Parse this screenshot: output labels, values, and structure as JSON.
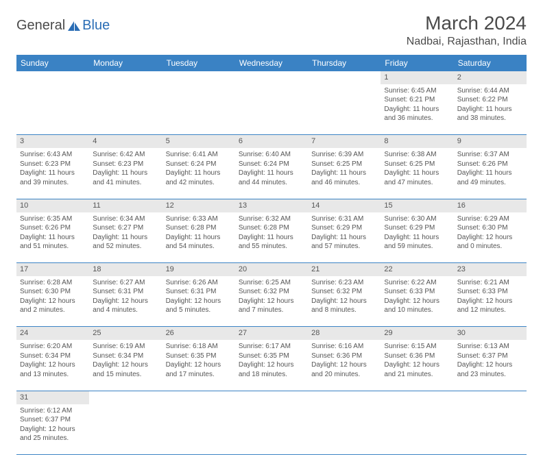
{
  "logo": {
    "part1": "General",
    "part2": "Blue"
  },
  "title": "March 2024",
  "location": "Nadbai, Rajasthan, India",
  "weekdays": [
    "Sunday",
    "Monday",
    "Tuesday",
    "Wednesday",
    "Thursday",
    "Friday",
    "Saturday"
  ],
  "colors": {
    "header_bg": "#3a82c4",
    "header_text": "#ffffff",
    "daynum_bg": "#e8e8e8",
    "border": "#3a82c4",
    "logo_blue": "#2a6db5"
  },
  "weeks": [
    [
      null,
      null,
      null,
      null,
      null,
      {
        "n": "1",
        "sr": "6:45 AM",
        "ss": "6:21 PM",
        "dl": "11 hours and 36 minutes."
      },
      {
        "n": "2",
        "sr": "6:44 AM",
        "ss": "6:22 PM",
        "dl": "11 hours and 38 minutes."
      }
    ],
    [
      {
        "n": "3",
        "sr": "6:43 AM",
        "ss": "6:23 PM",
        "dl": "11 hours and 39 minutes."
      },
      {
        "n": "4",
        "sr": "6:42 AM",
        "ss": "6:23 PM",
        "dl": "11 hours and 41 minutes."
      },
      {
        "n": "5",
        "sr": "6:41 AM",
        "ss": "6:24 PM",
        "dl": "11 hours and 42 minutes."
      },
      {
        "n": "6",
        "sr": "6:40 AM",
        "ss": "6:24 PM",
        "dl": "11 hours and 44 minutes."
      },
      {
        "n": "7",
        "sr": "6:39 AM",
        "ss": "6:25 PM",
        "dl": "11 hours and 46 minutes."
      },
      {
        "n": "8",
        "sr": "6:38 AM",
        "ss": "6:25 PM",
        "dl": "11 hours and 47 minutes."
      },
      {
        "n": "9",
        "sr": "6:37 AM",
        "ss": "6:26 PM",
        "dl": "11 hours and 49 minutes."
      }
    ],
    [
      {
        "n": "10",
        "sr": "6:35 AM",
        "ss": "6:26 PM",
        "dl": "11 hours and 51 minutes."
      },
      {
        "n": "11",
        "sr": "6:34 AM",
        "ss": "6:27 PM",
        "dl": "11 hours and 52 minutes."
      },
      {
        "n": "12",
        "sr": "6:33 AM",
        "ss": "6:28 PM",
        "dl": "11 hours and 54 minutes."
      },
      {
        "n": "13",
        "sr": "6:32 AM",
        "ss": "6:28 PM",
        "dl": "11 hours and 55 minutes."
      },
      {
        "n": "14",
        "sr": "6:31 AM",
        "ss": "6:29 PM",
        "dl": "11 hours and 57 minutes."
      },
      {
        "n": "15",
        "sr": "6:30 AM",
        "ss": "6:29 PM",
        "dl": "11 hours and 59 minutes."
      },
      {
        "n": "16",
        "sr": "6:29 AM",
        "ss": "6:30 PM",
        "dl": "12 hours and 0 minutes."
      }
    ],
    [
      {
        "n": "17",
        "sr": "6:28 AM",
        "ss": "6:30 PM",
        "dl": "12 hours and 2 minutes."
      },
      {
        "n": "18",
        "sr": "6:27 AM",
        "ss": "6:31 PM",
        "dl": "12 hours and 4 minutes."
      },
      {
        "n": "19",
        "sr": "6:26 AM",
        "ss": "6:31 PM",
        "dl": "12 hours and 5 minutes."
      },
      {
        "n": "20",
        "sr": "6:25 AM",
        "ss": "6:32 PM",
        "dl": "12 hours and 7 minutes."
      },
      {
        "n": "21",
        "sr": "6:23 AM",
        "ss": "6:32 PM",
        "dl": "12 hours and 8 minutes."
      },
      {
        "n": "22",
        "sr": "6:22 AM",
        "ss": "6:33 PM",
        "dl": "12 hours and 10 minutes."
      },
      {
        "n": "23",
        "sr": "6:21 AM",
        "ss": "6:33 PM",
        "dl": "12 hours and 12 minutes."
      }
    ],
    [
      {
        "n": "24",
        "sr": "6:20 AM",
        "ss": "6:34 PM",
        "dl": "12 hours and 13 minutes."
      },
      {
        "n": "25",
        "sr": "6:19 AM",
        "ss": "6:34 PM",
        "dl": "12 hours and 15 minutes."
      },
      {
        "n": "26",
        "sr": "6:18 AM",
        "ss": "6:35 PM",
        "dl": "12 hours and 17 minutes."
      },
      {
        "n": "27",
        "sr": "6:17 AM",
        "ss": "6:35 PM",
        "dl": "12 hours and 18 minutes."
      },
      {
        "n": "28",
        "sr": "6:16 AM",
        "ss": "6:36 PM",
        "dl": "12 hours and 20 minutes."
      },
      {
        "n": "29",
        "sr": "6:15 AM",
        "ss": "6:36 PM",
        "dl": "12 hours and 21 minutes."
      },
      {
        "n": "30",
        "sr": "6:13 AM",
        "ss": "6:37 PM",
        "dl": "12 hours and 23 minutes."
      }
    ],
    [
      {
        "n": "31",
        "sr": "6:12 AM",
        "ss": "6:37 PM",
        "dl": "12 hours and 25 minutes."
      },
      null,
      null,
      null,
      null,
      null,
      null
    ]
  ],
  "labels": {
    "sunrise": "Sunrise:",
    "sunset": "Sunset:",
    "daylight": "Daylight:"
  }
}
